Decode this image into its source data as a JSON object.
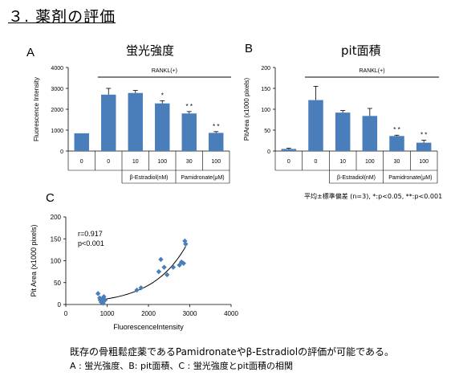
{
  "page": {
    "title": "３. 薬剤の評価",
    "note": "平均±標準偏差 (n=3), *:p<0.05, **:p<0.001",
    "footer_line1": "既存の骨粗鬆症薬であるPamidronateやβ-Estradiolの評価が可能である。",
    "footer_line2": "A : 蛍光強度、B: pit面積、C : 蛍光強度とpit面積の相関"
  },
  "colors": {
    "bar": "#4a7ebb",
    "axis": "#000000",
    "grid": "#000000"
  },
  "chart_data": [
    {
      "panel": "A",
      "type": "bar",
      "title": "蛍光強度",
      "ylabel": "Fluorescence Intensity",
      "ylim": [
        0,
        4000
      ],
      "yticks": [
        "0",
        "1000",
        "2000",
        "3000",
        "4000"
      ],
      "bracket_label": "RANKL(+)",
      "categories": [
        "0",
        "0",
        "10",
        "100",
        "30",
        "100"
      ],
      "values": [
        850,
        2700,
        2780,
        2280,
        1800,
        870
      ],
      "errors": [
        0,
        300,
        120,
        130,
        90,
        60
      ],
      "significance": [
        "",
        "",
        "",
        "*",
        "* *",
        "* *"
      ],
      "group_labels": [
        {
          "label": "β-Estradiol(nM)",
          "from": 2,
          "to": 3
        },
        {
          "label": "Pamidronate(μM)",
          "from": 4,
          "to": 5
        }
      ]
    },
    {
      "panel": "B",
      "type": "bar",
      "title": "pit面積",
      "ylabel": "PitArea (x1000 pixels)",
      "ylim": [
        0,
        200
      ],
      "yticks": [
        "0",
        "50",
        "100",
        "150",
        "200"
      ],
      "bracket_label": "RANKL(+)",
      "categories": [
        "0",
        "0",
        "10",
        "100",
        "30",
        "100"
      ],
      "values": [
        5,
        122,
        92,
        84,
        36,
        20
      ],
      "errors": [
        2,
        33,
        5,
        18,
        2,
        6
      ],
      "significance": [
        "",
        "",
        "",
        "",
        "* *",
        "* *"
      ],
      "group_labels": [
        {
          "label": "β-Estradiol(nM)",
          "from": 2,
          "to": 3
        },
        {
          "label": "Pamidronate(μM)",
          "from": 4,
          "to": 5
        }
      ]
    },
    {
      "panel": "C",
      "type": "scatter",
      "xlabel": "FluorescenceIntensity",
      "ylabel": "Pit Area (x1000 pixels)",
      "xlim": [
        0,
        4000
      ],
      "ylim": [
        0,
        200
      ],
      "xticks": [
        "0",
        "1000",
        "2000",
        "3000",
        "4000"
      ],
      "yticks": [
        "0",
        "50",
        "100",
        "150",
        "200"
      ],
      "annotation": [
        "r=0.917",
        "p<0.001"
      ],
      "points": [
        [
          780,
          25
        ],
        [
          820,
          15
        ],
        [
          850,
          6
        ],
        [
          880,
          12
        ],
        [
          900,
          3
        ],
        [
          920,
          18
        ],
        [
          950,
          10
        ],
        [
          1720,
          33
        ],
        [
          1820,
          38
        ],
        [
          2250,
          75
        ],
        [
          2300,
          103
        ],
        [
          2380,
          85
        ],
        [
          2450,
          68
        ],
        [
          2600,
          85
        ],
        [
          2750,
          90
        ],
        [
          2800,
          97
        ],
        [
          2850,
          94
        ],
        [
          2880,
          145
        ],
        [
          2900,
          138
        ]
      ],
      "trend": "exponential"
    }
  ]
}
